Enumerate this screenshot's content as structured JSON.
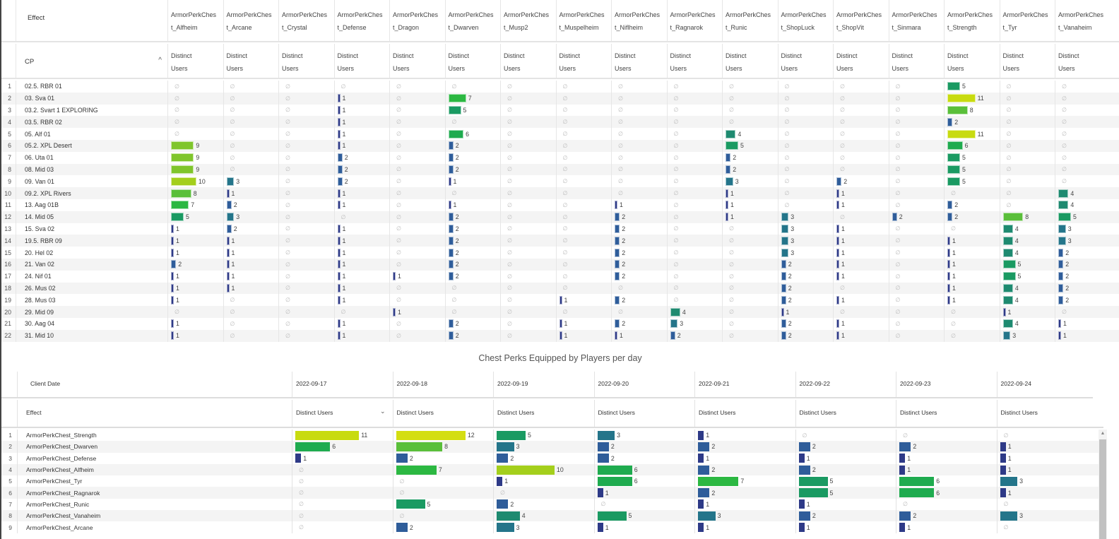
{
  "top_table": {
    "row_header_label": "Effect",
    "column_dimension_label": "CP",
    "sort_icon": "caret-up-icon",
    "metric_label_line1": "Distinct",
    "metric_label_line2": "Users",
    "zero_symbol": "∅",
    "columns": [
      {
        "line1": "ArmorPerkChes",
        "line2": "t_Alfheim"
      },
      {
        "line1": "ArmorPerkChes",
        "line2": "t_Arcane"
      },
      {
        "line1": "ArmorPerkChes",
        "line2": "t_Crystal"
      },
      {
        "line1": "ArmorPerkChes",
        "line2": "t_Defense"
      },
      {
        "line1": "ArmorPerkChes",
        "line2": "t_Dragon"
      },
      {
        "line1": "ArmorPerkChes",
        "line2": "t_Dwarven"
      },
      {
        "line1": "ArmorPerkChes",
        "line2": "t_Musp2"
      },
      {
        "line1": "ArmorPerkChes",
        "line2": "t_Muspelheim"
      },
      {
        "line1": "ArmorPerkChes",
        "line2": "t_Niflheim"
      },
      {
        "line1": "ArmorPerkChes",
        "line2": "t_Ragnarok"
      },
      {
        "line1": "ArmorPerkChes",
        "line2": "t_Runic"
      },
      {
        "line1": "ArmorPerkChes",
        "line2": "t_ShopLuck"
      },
      {
        "line1": "ArmorPerkChes",
        "line2": "t_ShopVit"
      },
      {
        "line1": "ArmorPerkChes",
        "line2": "t_Sinmara"
      },
      {
        "line1": "ArmorPerkChes",
        "line2": "t_Strength"
      },
      {
        "line1": "ArmorPerkChes",
        "line2": "t_Tyr"
      },
      {
        "line1": "ArmorPerkChes",
        "line2": "t_Vanaheim"
      }
    ],
    "rows": [
      {
        "n": "1",
        "label": "02.5. RBR 01",
        "values": [
          0,
          0,
          0,
          0,
          0,
          0,
          0,
          0,
          0,
          0,
          0,
          0,
          0,
          0,
          5,
          0,
          0
        ]
      },
      {
        "n": "2",
        "label": "03. Sva 01",
        "values": [
          0,
          0,
          0,
          1,
          0,
          7,
          0,
          0,
          0,
          0,
          0,
          0,
          0,
          0,
          11,
          0,
          0
        ]
      },
      {
        "n": "3",
        "label": "03.2. Svart 1 EXPLORING",
        "values": [
          0,
          0,
          0,
          1,
          0,
          5,
          0,
          0,
          0,
          0,
          0,
          0,
          0,
          0,
          8,
          0,
          0
        ]
      },
      {
        "n": "4",
        "label": "03.5. RBR 02",
        "values": [
          0,
          0,
          0,
          1,
          0,
          0,
          0,
          0,
          0,
          0,
          0,
          0,
          0,
          0,
          2,
          0,
          0
        ]
      },
      {
        "n": "5",
        "label": "05. Alf 01",
        "values": [
          0,
          0,
          0,
          1,
          0,
          6,
          0,
          0,
          0,
          0,
          4,
          0,
          0,
          0,
          11,
          0,
          0
        ]
      },
      {
        "n": "6",
        "label": "05.2. XPL Desert",
        "values": [
          9,
          0,
          0,
          1,
          0,
          2,
          0,
          0,
          0,
          0,
          5,
          0,
          0,
          0,
          6,
          0,
          0
        ]
      },
      {
        "n": "7",
        "label": "06. Uta 01",
        "values": [
          9,
          0,
          0,
          2,
          0,
          2,
          0,
          0,
          0,
          0,
          2,
          0,
          0,
          0,
          5,
          0,
          0
        ]
      },
      {
        "n": "8",
        "label": "08. Mid 03",
        "values": [
          9,
          0,
          0,
          2,
          0,
          2,
          0,
          0,
          0,
          0,
          2,
          0,
          0,
          0,
          5,
          0,
          0
        ]
      },
      {
        "n": "9",
        "label": "09. Van 01",
        "values": [
          10,
          3,
          0,
          2,
          0,
          1,
          0,
          0,
          0,
          0,
          3,
          0,
          2,
          0,
          5,
          0,
          0
        ]
      },
      {
        "n": "10",
        "label": "09.2. XPL Rivers",
        "values": [
          8,
          1,
          0,
          1,
          0,
          0,
          0,
          0,
          0,
          0,
          1,
          0,
          1,
          0,
          0,
          0,
          4
        ]
      },
      {
        "n": "11",
        "label": "13. Aag 01B",
        "values": [
          7,
          2,
          0,
          1,
          0,
          1,
          0,
          0,
          1,
          0,
          1,
          0,
          1,
          0,
          2,
          0,
          4
        ]
      },
      {
        "n": "12",
        "label": "14. Mid 05",
        "values": [
          5,
          3,
          0,
          0,
          0,
          2,
          0,
          0,
          2,
          0,
          1,
          3,
          0,
          2,
          2,
          8,
          5
        ]
      },
      {
        "n": "13",
        "label": "15. Sva 02",
        "values": [
          1,
          2,
          0,
          1,
          0,
          2,
          0,
          0,
          2,
          0,
          0,
          3,
          1,
          0,
          0,
          4,
          3
        ]
      },
      {
        "n": "14",
        "label": "19.5. RBR 09",
        "values": [
          1,
          1,
          0,
          1,
          0,
          2,
          0,
          0,
          2,
          0,
          0,
          3,
          1,
          0,
          1,
          4,
          3
        ]
      },
      {
        "n": "15",
        "label": "20. Hel 02",
        "values": [
          1,
          1,
          0,
          1,
          0,
          2,
          0,
          0,
          2,
          0,
          0,
          3,
          1,
          0,
          1,
          4,
          2
        ]
      },
      {
        "n": "16",
        "label": "21. Van 02",
        "values": [
          2,
          1,
          0,
          1,
          0,
          2,
          0,
          0,
          2,
          0,
          0,
          2,
          1,
          0,
          1,
          5,
          2
        ]
      },
      {
        "n": "17",
        "label": "24. Nif 01",
        "values": [
          1,
          1,
          0,
          1,
          1,
          2,
          0,
          0,
          2,
          0,
          0,
          2,
          1,
          0,
          1,
          5,
          2
        ]
      },
      {
        "n": "18",
        "label": "26. Mus 02",
        "values": [
          1,
          1,
          0,
          1,
          0,
          0,
          0,
          0,
          0,
          0,
          0,
          2,
          0,
          0,
          1,
          4,
          2
        ]
      },
      {
        "n": "19",
        "label": "28. Mus 03",
        "values": [
          1,
          0,
          0,
          1,
          0,
          0,
          0,
          1,
          2,
          0,
          0,
          2,
          1,
          0,
          1,
          4,
          2
        ]
      },
      {
        "n": "20",
        "label": "29. Mid 09",
        "values": [
          0,
          0,
          0,
          0,
          1,
          0,
          0,
          0,
          0,
          4,
          0,
          1,
          0,
          0,
          0,
          1,
          0
        ]
      },
      {
        "n": "21",
        "label": "30. Aag 04",
        "values": [
          1,
          0,
          0,
          1,
          0,
          2,
          0,
          1,
          2,
          3,
          0,
          2,
          1,
          0,
          0,
          4,
          1
        ]
      },
      {
        "n": "22",
        "label": "31. Mid 10",
        "values": [
          1,
          0,
          0,
          1,
          0,
          2,
          0,
          1,
          1,
          2,
          0,
          2,
          1,
          0,
          0,
          3,
          1
        ]
      }
    ]
  },
  "bottom_table": {
    "title": "Chest Perks Equipped by Players per day",
    "column_dimension_label": "Client Date",
    "row_header_label": "Effect",
    "metric_label": "Distinct Users",
    "sort_icon": "chevron-down-icon",
    "zero_symbol": "∅",
    "dates": [
      "2022-09-17",
      "2022-09-18",
      "2022-09-19",
      "2022-09-20",
      "2022-09-21",
      "2022-09-22",
      "2022-09-23",
      "2022-09-24"
    ],
    "rows": [
      {
        "n": "1",
        "label": "ArmorPerkChest_Strength",
        "values": [
          11,
          12,
          5,
          3,
          1,
          0,
          0,
          0
        ]
      },
      {
        "n": "2",
        "label": "ArmorPerkChest_Dwarven",
        "values": [
          6,
          8,
          3,
          2,
          2,
          2,
          2,
          1
        ]
      },
      {
        "n": "3",
        "label": "ArmorPerkChest_Defense",
        "values": [
          1,
          2,
          2,
          2,
          1,
          1,
          1,
          1
        ]
      },
      {
        "n": "4",
        "label": "ArmorPerkChest_Alfheim",
        "values": [
          0,
          7,
          10,
          6,
          2,
          2,
          1,
          1
        ]
      },
      {
        "n": "5",
        "label": "ArmorPerkChest_Tyr",
        "values": [
          0,
          0,
          1,
          6,
          7,
          5,
          6,
          3
        ]
      },
      {
        "n": "6",
        "label": "ArmorPerkChest_Ragnarok",
        "values": [
          0,
          0,
          0,
          1,
          2,
          5,
          6,
          1
        ]
      },
      {
        "n": "7",
        "label": "ArmorPerkChest_Runic",
        "values": [
          0,
          5,
          2,
          0,
          1,
          1,
          0,
          0
        ]
      },
      {
        "n": "8",
        "label": "ArmorPerkChest_Vanaheim",
        "values": [
          0,
          0,
          4,
          5,
          3,
          2,
          2,
          3
        ]
      },
      {
        "n": "9",
        "label": "ArmorPerkChest_Arcane",
        "values": [
          0,
          2,
          3,
          1,
          1,
          1,
          1,
          0
        ]
      }
    ]
  },
  "scrollbar": {
    "up_arrow_icon": "▲"
  },
  "color_scale": {
    "1": "#2e3a87",
    "2": "#2f5d9a",
    "3": "#24758a",
    "4": "#1e8a70",
    "5": "#1a9a62",
    "6": "#1fab4f",
    "7": "#2cb842",
    "8": "#5abf3a",
    "9": "#7fc52c",
    "10": "#a4cf1c",
    "11": "#c8db10",
    "12": "#d4de12"
  }
}
